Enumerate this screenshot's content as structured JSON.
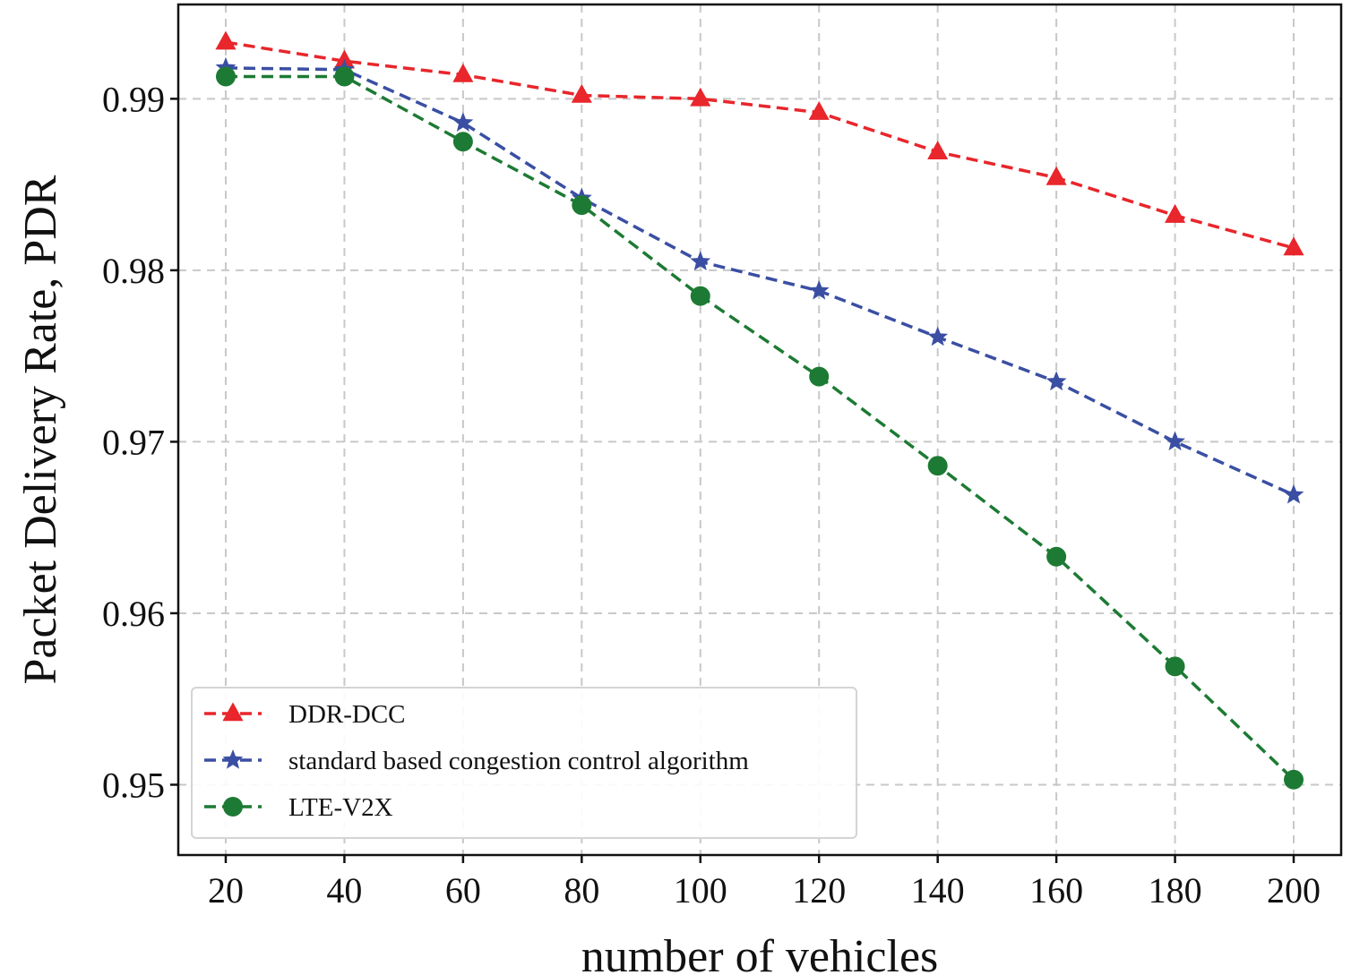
{
  "chart_data": {
    "type": "line",
    "title": "",
    "xlabel": "number of vehicles",
    "ylabel": "Packet Delivery Rate, PDR",
    "x": [
      20,
      40,
      60,
      80,
      100,
      120,
      140,
      160,
      180,
      200
    ],
    "x_tick_labels": [
      "20",
      "40",
      "60",
      "80",
      "100",
      "120",
      "140",
      "160",
      "180",
      "200"
    ],
    "y_ticks": [
      0.95,
      0.96,
      0.97,
      0.98,
      0.99
    ],
    "y_tick_labels": [
      "0.95",
      "0.96",
      "0.97",
      "0.98",
      "0.99"
    ],
    "xlim": [
      12,
      208
    ],
    "ylim": [
      0.9459,
      0.9955
    ],
    "grid": true,
    "legend_position": "lower-left",
    "series": [
      {
        "name": "DDR-DCC",
        "color": "#e8262b",
        "marker": "triangle",
        "line_style": "dashed",
        "values": [
          0.9933,
          0.9922,
          0.9914,
          0.9902,
          0.99,
          0.9892,
          0.9869,
          0.9854,
          0.9832,
          0.9813
        ]
      },
      {
        "name": "standard based congestion control algorithm",
        "color": "#3a4fa3",
        "marker": "star",
        "line_style": "dashed",
        "values": [
          0.9918,
          0.9917,
          0.9886,
          0.9842,
          0.9805,
          0.9788,
          0.9761,
          0.9735,
          0.97,
          0.9669
        ]
      },
      {
        "name": "LTE-V2X",
        "color": "#1d7a34",
        "marker": "circle",
        "line_style": "dashed",
        "values": [
          0.9913,
          0.9913,
          0.9875,
          0.9838,
          0.9785,
          0.9738,
          0.9686,
          0.9633,
          0.9569,
          0.9503
        ]
      }
    ]
  }
}
